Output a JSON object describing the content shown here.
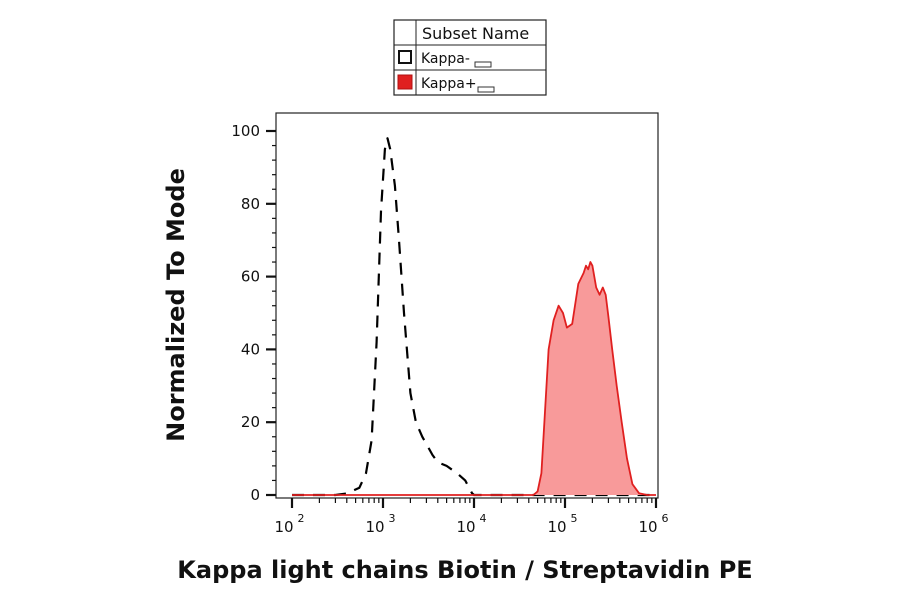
{
  "chart_data": {
    "type": "area",
    "xlabel": "Kappa light chains Biotin / Streptavidin PE",
    "ylabel": "Normalized To Mode",
    "x_scale": "log",
    "xlim": [
      100,
      1000000
    ],
    "ylim": [
      0,
      100
    ],
    "x_ticks": [
      {
        "base": "10",
        "exp": "2",
        "value": 100
      },
      {
        "base": "10",
        "exp": "3",
        "value": 1000
      },
      {
        "base": "10",
        "exp": "4",
        "value": 10000
      },
      {
        "base": "10",
        "exp": "5",
        "value": 100000
      },
      {
        "base": "10",
        "exp": "6",
        "value": 1000000
      }
    ],
    "y_ticks": [
      "0",
      "20",
      "40",
      "60",
      "80",
      "100"
    ],
    "grid": false,
    "legend": {
      "header": "Subset Name",
      "placement": "top-center",
      "entries": [
        "Kappa-",
        "Kappa+"
      ]
    },
    "series": [
      {
        "name": "Kappa-",
        "style": "dashed",
        "color": "#000000",
        "fill": "none",
        "points": [
          [
            100,
            0
          ],
          [
            300,
            0
          ],
          [
            400,
            0.4
          ],
          [
            550,
            2
          ],
          [
            650,
            6
          ],
          [
            750,
            15
          ],
          [
            850,
            42
          ],
          [
            950,
            78
          ],
          [
            1050,
            95
          ],
          [
            1120,
            98
          ],
          [
            1200,
            95
          ],
          [
            1350,
            85
          ],
          [
            1500,
            70
          ],
          [
            1700,
            50
          ],
          [
            2000,
            28
          ],
          [
            2300,
            20
          ],
          [
            2700,
            16
          ],
          [
            3000,
            14
          ],
          [
            3500,
            11
          ],
          [
            4000,
            9
          ],
          [
            5000,
            8
          ],
          [
            6500,
            6
          ],
          [
            8000,
            4
          ],
          [
            9500,
            0.5
          ],
          [
            10000,
            0
          ],
          [
            100000,
            0
          ],
          [
            1000000,
            0
          ]
        ]
      },
      {
        "name": "Kappa+",
        "style": "solid",
        "color": "#e02020",
        "fill": "#f89a9a",
        "points": [
          [
            100,
            0
          ],
          [
            10000,
            0
          ],
          [
            45000,
            0
          ],
          [
            50000,
            1
          ],
          [
            55000,
            6
          ],
          [
            60000,
            22
          ],
          [
            66000,
            40
          ],
          [
            75000,
            48
          ],
          [
            85000,
            52
          ],
          [
            95000,
            50
          ],
          [
            105000,
            46
          ],
          [
            120000,
            47
          ],
          [
            140000,
            58
          ],
          [
            160000,
            61
          ],
          [
            170000,
            63
          ],
          [
            180000,
            62
          ],
          [
            190000,
            64
          ],
          [
            200000,
            63
          ],
          [
            220000,
            57
          ],
          [
            240000,
            55
          ],
          [
            260000,
            57
          ],
          [
            280000,
            55
          ],
          [
            300000,
            49
          ],
          [
            330000,
            40
          ],
          [
            370000,
            30
          ],
          [
            420000,
            20
          ],
          [
            480000,
            10
          ],
          [
            550000,
            3
          ],
          [
            650000,
            0.5
          ],
          [
            800000,
            0
          ],
          [
            1000000,
            0
          ]
        ]
      }
    ]
  },
  "colors": {
    "kappa_neg_line": "#000000",
    "kappa_pos_line": "#e02020",
    "kappa_pos_fill": "#f89a9a"
  }
}
